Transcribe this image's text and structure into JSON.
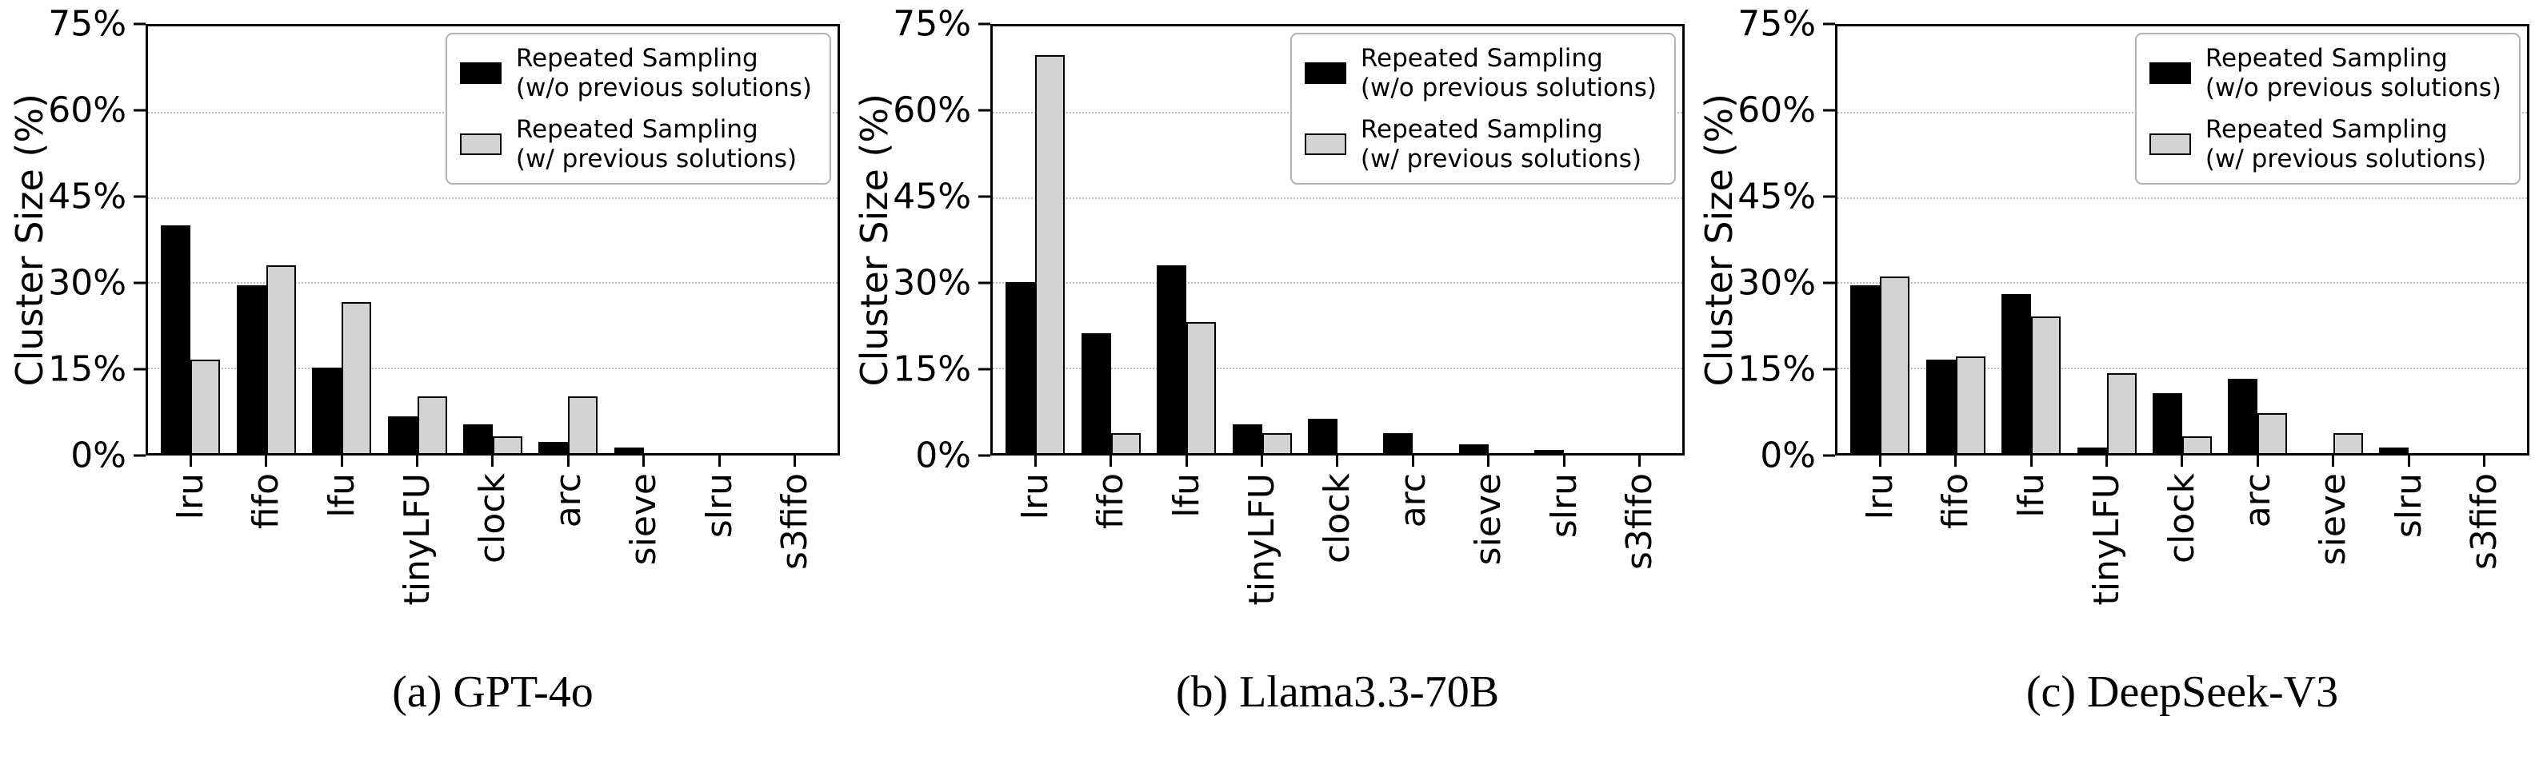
{
  "figure": {
    "background": "#ffffff",
    "ylabel": "Cluster Size (%)",
    "colors": {
      "series_1": "#000000",
      "series_2": "#d3d3d3",
      "axis": "#000000"
    }
  },
  "chart_data": [
    {
      "type": "bar",
      "title": "(a) GPT-4o",
      "caption": "(a) GPT-4o",
      "ylabel": "Cluster Size (%)",
      "ylim": [
        0,
        75
      ],
      "yticks": [
        0,
        15,
        30,
        45,
        60,
        75
      ],
      "ytick_labels": [
        "0%",
        "15%",
        "30%",
        "45%",
        "60%",
        "75%"
      ],
      "grid": true,
      "legend_position": "upper right",
      "categories": [
        "lru",
        "fifo",
        "lfu",
        "tinyLFU",
        "clock",
        "arc",
        "sieve",
        "slru",
        "s3fifo"
      ],
      "series": [
        {
          "name": "Repeated Sampling (w/o previous solutions)",
          "name_lines": [
            "Repeated Sampling",
            "(w/o previous solutions)"
          ],
          "color": "#000000",
          "values": [
            40,
            29.5,
            15,
            6.5,
            5,
            2,
            1,
            0,
            0
          ]
        },
        {
          "name": "Repeated Sampling (w/ previous solutions)",
          "name_lines": [
            "Repeated Sampling",
            "(w/ previous solutions)"
          ],
          "color": "#d3d3d3",
          "values": [
            16.5,
            33,
            26.5,
            10,
            3,
            10,
            0,
            0,
            0
          ]
        }
      ]
    },
    {
      "type": "bar",
      "title": "(b) Llama3.3-70B",
      "caption": "(b) Llama3.3-70B",
      "ylabel": "Cluster Size (%)",
      "ylim": [
        0,
        75
      ],
      "yticks": [
        0,
        15,
        30,
        45,
        60,
        75
      ],
      "ytick_labels": [
        "0%",
        "15%",
        "30%",
        "45%",
        "60%",
        "75%"
      ],
      "grid": true,
      "legend_position": "upper right",
      "categories": [
        "lru",
        "fifo",
        "lfu",
        "tinyLFU",
        "clock",
        "arc",
        "sieve",
        "slru",
        "s3fifo"
      ],
      "series": [
        {
          "name": "Repeated Sampling (w/o previous solutions)",
          "name_lines": [
            "Repeated Sampling",
            "(w/o previous solutions)"
          ],
          "color": "#000000",
          "values": [
            30,
            21,
            33,
            5,
            6,
            3.5,
            1.5,
            0.5,
            0
          ]
        },
        {
          "name": "Repeated Sampling (w/ previous solutions)",
          "name_lines": [
            "Repeated Sampling",
            "(w/ previous solutions)"
          ],
          "color": "#d3d3d3",
          "values": [
            70,
            3.5,
            23,
            3.5,
            0,
            0,
            0,
            0,
            0
          ]
        }
      ]
    },
    {
      "type": "bar",
      "title": "(c) DeepSeek-V3",
      "caption": "(c) DeepSeek-V3",
      "ylabel": "Cluster Size (%)",
      "ylim": [
        0,
        75
      ],
      "yticks": [
        0,
        15,
        30,
        45,
        60,
        75
      ],
      "ytick_labels": [
        "0%",
        "15%",
        "30%",
        "45%",
        "60%",
        "75%"
      ],
      "grid": true,
      "legend_position": "upper right",
      "categories": [
        "lru",
        "fifo",
        "lfu",
        "tinyLFU",
        "clock",
        "arc",
        "sieve",
        "slru",
        "s3fifo"
      ],
      "series": [
        {
          "name": "Repeated Sampling (w/o previous solutions)",
          "name_lines": [
            "Repeated Sampling",
            "(w/o previous solutions)"
          ],
          "color": "#000000",
          "values": [
            29.5,
            16.5,
            28,
            1,
            10.5,
            13,
            0,
            1,
            0
          ]
        },
        {
          "name": "Repeated Sampling (w/ previous solutions)",
          "name_lines": [
            "Repeated Sampling",
            "(w/ previous solutions)"
          ],
          "color": "#d3d3d3",
          "values": [
            31,
            17,
            24,
            14,
            3,
            7,
            3.5,
            0,
            0
          ]
        }
      ]
    }
  ]
}
